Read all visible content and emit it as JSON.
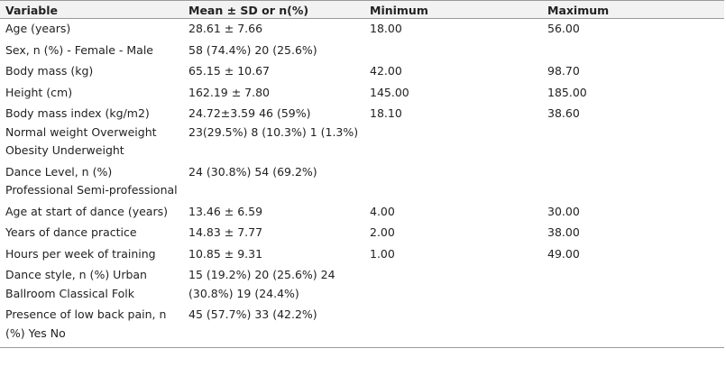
{
  "table": {
    "headers": [
      "Variable",
      "Mean ± SD or n(%)",
      "Minimum",
      "Maximum"
    ],
    "rows": [
      {
        "variable": "Age (years)",
        "mean": "28.61 ± 7.66",
        "min": "18.00",
        "max": "56.00"
      },
      {
        "variable": "Sex, n (%) - Female - Male",
        "mean": "58 (74.4%) 20 (25.6%)",
        "min": "",
        "max": ""
      },
      {
        "variable": "Body mass (kg)",
        "mean": "65.15 ± 10.67",
        "min": "42.00",
        "max": "98.70"
      },
      {
        "variable": "Height (cm)",
        "mean": "162.19 ± 7.80",
        "min": "145.00",
        "max": "185.00"
      },
      {
        "variable": "Body mass index (kg/m2) Normal weight Overweight Obesity Underweight",
        "mean": "24.72±3.59 46 (59%) 23(29.5%) 8 (10.3%) 1 (1.3%)",
        "min": "18.10",
        "max": "38.60"
      },
      {
        "variable": "Dance Level, n (%) Professional Semi-professional",
        "mean": "24 (30.8%) 54 (69.2%)",
        "min": "",
        "max": ""
      },
      {
        "variable": "Age at start of dance (years)",
        "mean": "13.46 ± 6.59",
        "min": "4.00",
        "max": "30.00"
      },
      {
        "variable": "Years of dance practice",
        "mean": "14.83 ± 7.77",
        "min": "2.00",
        "max": "38.00"
      },
      {
        "variable": "Hours per week of training",
        "mean": "10.85 ± 9.31",
        "min": "1.00",
        "max": "49.00"
      },
      {
        "variable": "Dance style, n (%) Urban Ballroom Classical Folk",
        "mean": "15 (19.2%) 20 (25.6%) 24 (30.8%) 19 (24.4%)",
        "min": "",
        "max": ""
      },
      {
        "variable": "Presence of low back pain, n (%) Yes No",
        "mean": "45 (57.7%) 33 (42.2%)",
        "min": "",
        "max": ""
      }
    ]
  }
}
